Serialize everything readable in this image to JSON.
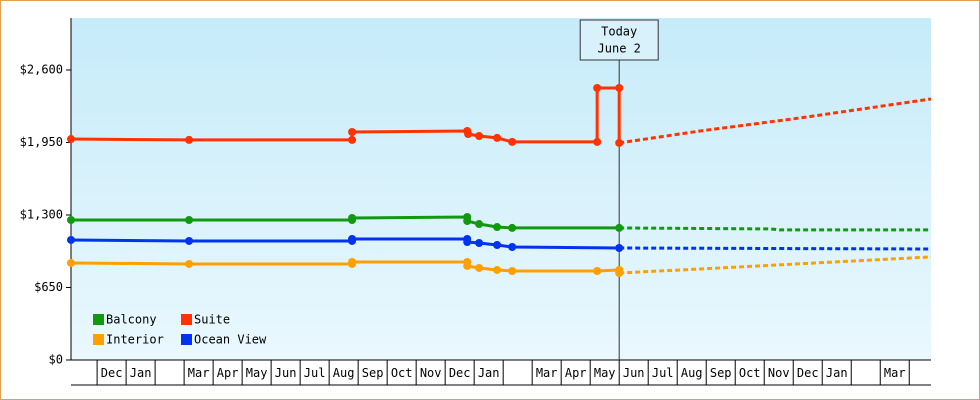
{
  "chart_data": {
    "type": "line",
    "categories": [
      null,
      "Dec",
      "Jan",
      null,
      "Mar",
      "Apr",
      "May",
      "Jun",
      "Jul",
      "Aug",
      "Sep",
      "Oct",
      "Nov",
      "Dec",
      "Jan",
      null,
      "Mar",
      "Apr",
      "May",
      "Jun",
      "Jul",
      "Aug",
      "Sep",
      "Oct",
      "Nov",
      "Dec",
      "Jan",
      null,
      "Mar",
      null
    ],
    "xlim": [
      0.1,
      29.75
    ],
    "ylim": [
      0,
      3066
    ],
    "yticks": [
      {
        "value": 0,
        "label": "$0"
      },
      {
        "value": 650,
        "label": "$650"
      },
      {
        "value": 1300,
        "label": "$1,300"
      },
      {
        "value": 1950,
        "label": "$1,950"
      },
      {
        "value": 2600,
        "label": "$2,600"
      }
    ],
    "annotation": {
      "x": 19,
      "text": [
        "Today",
        "June 2"
      ]
    },
    "series": [
      {
        "name": "Balcony",
        "color": "#119911",
        "x": [
          0.1,
          4.17,
          9.79,
          9.79,
          13.76,
          13.76,
          14.17,
          14.79,
          15.31,
          19,
          24.21,
          24.55,
          29.75
        ],
        "values": [
          1255,
          1255,
          1255,
          1273,
          1282,
          1246,
          1219,
          1192,
          1184,
          1184,
          1175,
          1166,
          1166
        ]
      },
      {
        "name": "Suite",
        "color": "#ff3300",
        "x": [
          0.1,
          4.17,
          9.79,
          9.79,
          13.76,
          13.79,
          14.17,
          14.79,
          15.31,
          18.24,
          18.24,
          19,
          19,
          21.79,
          25.24,
          29.75
        ],
        "values": [
          1981,
          1973,
          1973,
          2044,
          2053,
          2026,
          2008,
          1991,
          1955,
          1955,
          2439,
          2439,
          1946,
          2053,
          2170,
          2340
        ]
      },
      {
        "name": "Interior",
        "color": "#ff9f00",
        "x": [
          0.1,
          4.17,
          9.79,
          9.79,
          13.76,
          13.76,
          14.17,
          14.79,
          15.31,
          18.24,
          19,
          19,
          21.79,
          29.75
        ],
        "values": [
          870,
          861,
          861,
          879,
          879,
          843,
          825,
          807,
          798,
          798,
          807,
          780,
          816,
          924
        ]
      },
      {
        "name": "Ocean View",
        "color": "#0033ee",
        "x": [
          0.1,
          4.17,
          9.79,
          9.79,
          13.76,
          13.76,
          14.17,
          14.79,
          15.31,
          19,
          29.75
        ],
        "values": [
          1076,
          1067,
          1067,
          1085,
          1085,
          1058,
          1049,
          1031,
          1013,
          1004,
          995
        ]
      }
    ]
  }
}
